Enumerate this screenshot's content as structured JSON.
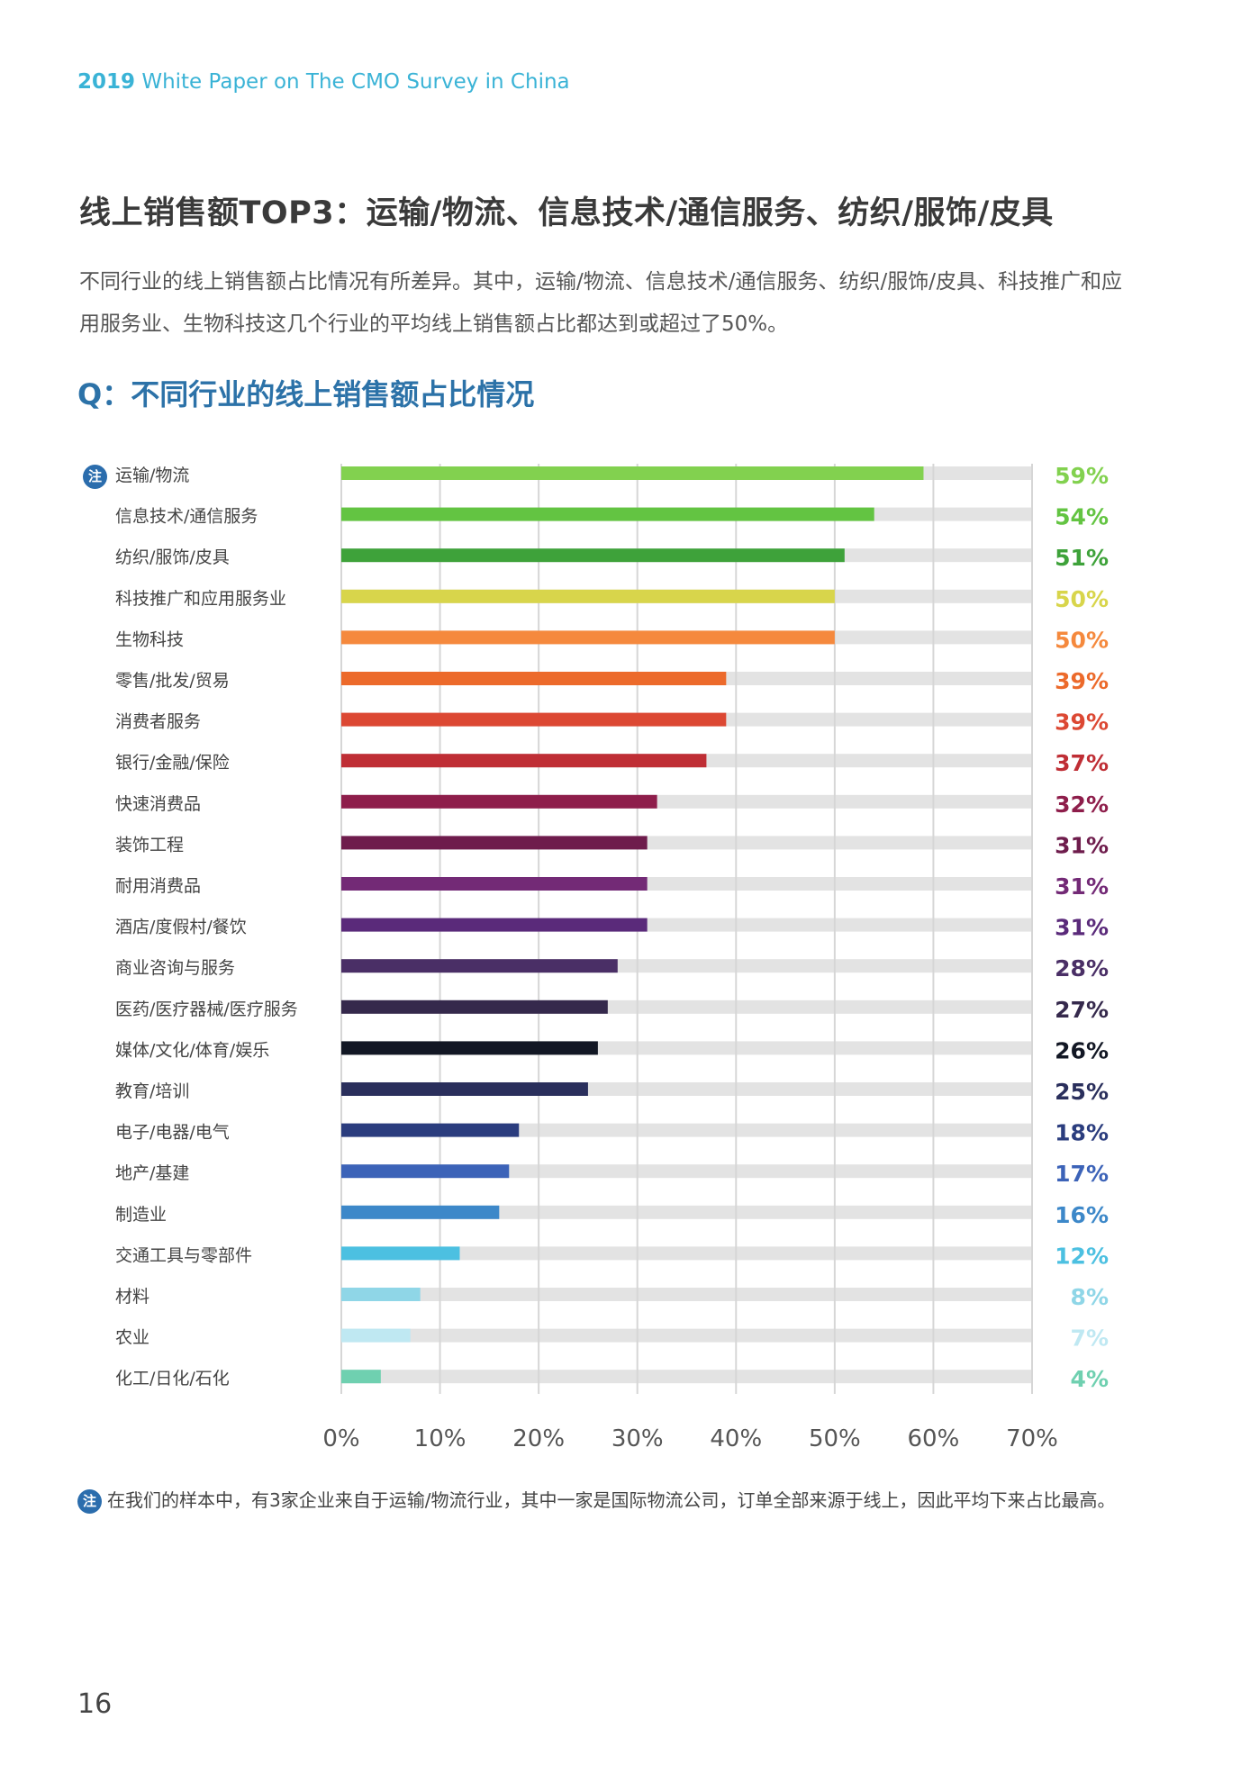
{
  "header": {
    "year": "2019",
    "text": "White Paper on The CMO Survey in China"
  },
  "title": "线上销售额TOP3：运输/物流、信息技术/通信服务、纺织/服饰/皮具",
  "description": "不同行业的线上销售额占比情况有所差异。其中，运输/物流、信息技术/通信服务、纺织/服饰/皮具、科技推广和应用服务业、生物科技这几个行业的平均线上销售额占比都达到或超过了50%。",
  "question": "Q：不同行业的线上销售额占比情况",
  "note_badge": "注",
  "chart_data": {
    "type": "bar",
    "orientation": "horizontal",
    "xlim": [
      0,
      70
    ],
    "ticks": [
      "0%",
      "10%",
      "20%",
      "30%",
      "40%",
      "50%",
      "60%",
      "70%"
    ],
    "grid": true,
    "categories": [
      "运输/物流",
      "信息技术/通信服务",
      "纺织/服饰/皮具",
      "科技推广和应用服务业",
      "生物科技",
      "零售/批发/贸易",
      "消费者服务",
      "银行/金融/保险",
      "快速消费品",
      "装饰工程",
      "耐用消费品",
      "酒店/度假村/餐饮",
      "商业咨询与服务",
      "医药/医疗器械/医疗服务",
      "媒体/文化/体育/娱乐",
      "教育/培训",
      "电子/电器/电气",
      "地产/基建",
      "制造业",
      "交通工具与零部件",
      "材料",
      "农业",
      "化工/日化/石化"
    ],
    "values": [
      59,
      54,
      51,
      50,
      50,
      39,
      39,
      37,
      32,
      31,
      31,
      31,
      28,
      27,
      26,
      25,
      18,
      17,
      16,
      12,
      8,
      7,
      4
    ],
    "labels": [
      "59%",
      "54%",
      "51%",
      "50%",
      "50%",
      "39%",
      "39%",
      "37%",
      "32%",
      "31%",
      "31%",
      "31%",
      "28%",
      "27%",
      "26%",
      "25%",
      "18%",
      "17%",
      "16%",
      "12%",
      "8%",
      "7%",
      "4%"
    ],
    "colors": [
      "#82d14f",
      "#63c442",
      "#3ea23a",
      "#d8d54b",
      "#f5893d",
      "#ec6a2b",
      "#dc4833",
      "#bf2e35",
      "#8e1e4b",
      "#6e1c4c",
      "#732a76",
      "#5a2a7a",
      "#4a2f66",
      "#35294c",
      "#121724",
      "#2a2f5c",
      "#2b3d7e",
      "#3c63b8",
      "#3d88c9",
      "#4cc0e1",
      "#8fd6e7",
      "#bfe8f2",
      "#6fd0b0"
    ],
    "track_color": "#e3e3e3"
  },
  "footnote": "在我们的样本中，有3家企业来自于运输/物流行业，其中一家是国际物流公司，订单全部来源于线上，因此平均下来占比最高。",
  "page_number": "16"
}
